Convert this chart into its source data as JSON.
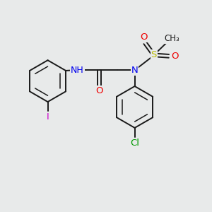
{
  "bg_color": "#e8eaea",
  "bond_color": "#1a1a1a",
  "atom_colors": {
    "N": "#0000ee",
    "O": "#ee0000",
    "S": "#bbbb00",
    "I": "#cc00cc",
    "Cl": "#009900",
    "C": "#1a1a1a"
  },
  "figsize": [
    3.0,
    3.0
  ],
  "dpi": 100
}
